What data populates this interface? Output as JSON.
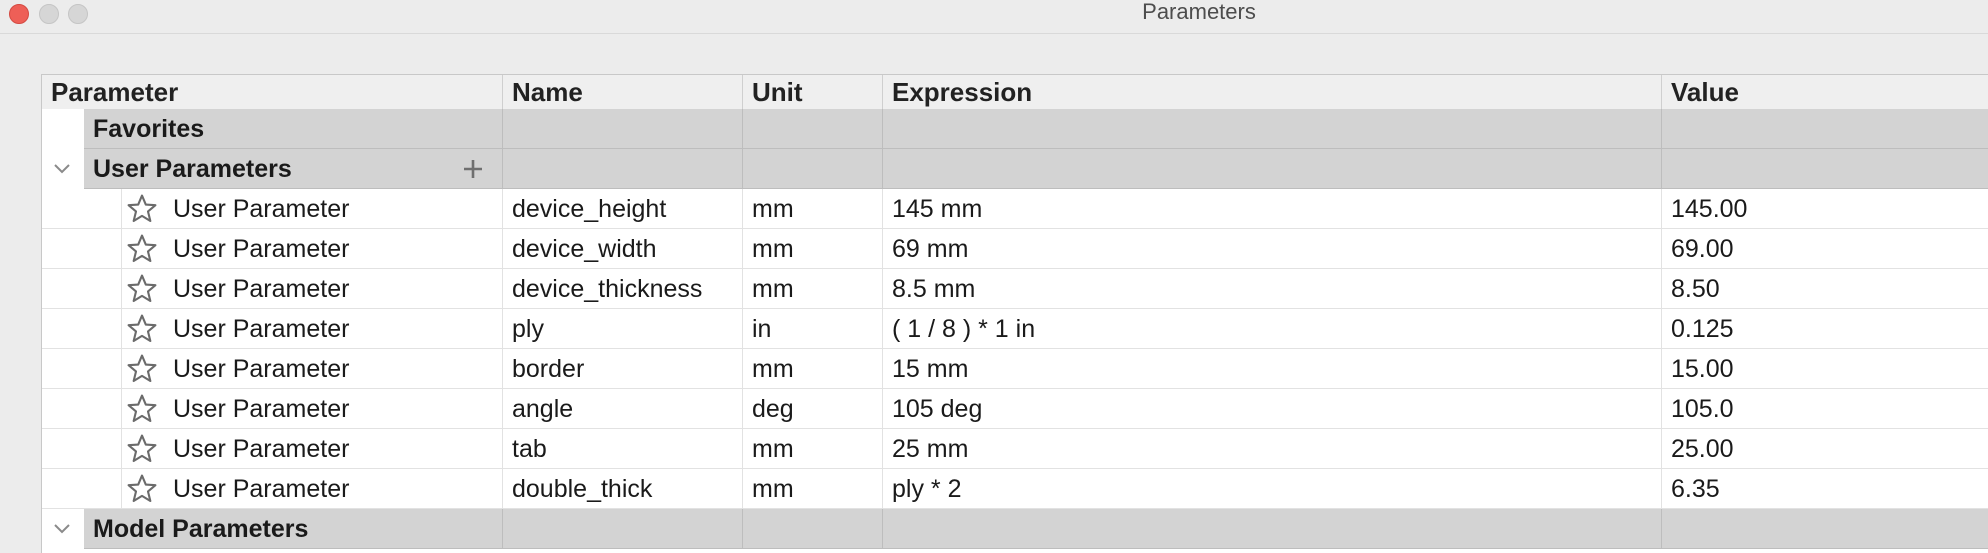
{
  "window": {
    "title": "Parameters"
  },
  "columns": {
    "parameter": "Parameter",
    "name": "Name",
    "unit": "Unit",
    "expression": "Expression",
    "value": "Value"
  },
  "groups": {
    "favorites": "Favorites",
    "user_parameters": "User Parameters",
    "model_parameters": "Model Parameters"
  },
  "user_parameters": [
    {
      "type": "User Parameter",
      "name": "device_height",
      "unit": "mm",
      "expression": "145 mm",
      "value": "145.00"
    },
    {
      "type": "User Parameter",
      "name": "device_width",
      "unit": "mm",
      "expression": "69 mm",
      "value": "69.00"
    },
    {
      "type": "User Parameter",
      "name": "device_thickness",
      "unit": "mm",
      "expression": "8.5 mm",
      "value": "8.50"
    },
    {
      "type": "User Parameter",
      "name": "ply",
      "unit": "in",
      "expression": "( 1 / 8 ) * 1 in",
      "value": "0.125"
    },
    {
      "type": "User Parameter",
      "name": "border",
      "unit": "mm",
      "expression": "15 mm",
      "value": "15.00"
    },
    {
      "type": "User Parameter",
      "name": "angle",
      "unit": "deg",
      "expression": "105 deg",
      "value": "105.0"
    },
    {
      "type": "User Parameter",
      "name": "tab",
      "unit": "mm",
      "expression": "25 mm",
      "value": "25.00"
    },
    {
      "type": "User Parameter",
      "name": "double_thick",
      "unit": "mm",
      "expression": "ply * 2",
      "value": "6.35"
    }
  ],
  "icons": {
    "favorite": "star-outline-icon",
    "expand": "chevron-down-icon",
    "add": "plus-icon"
  },
  "colors": {
    "close_button": "#ee5f57",
    "group_row": "#d3d3d3",
    "header_row": "#efefef"
  }
}
